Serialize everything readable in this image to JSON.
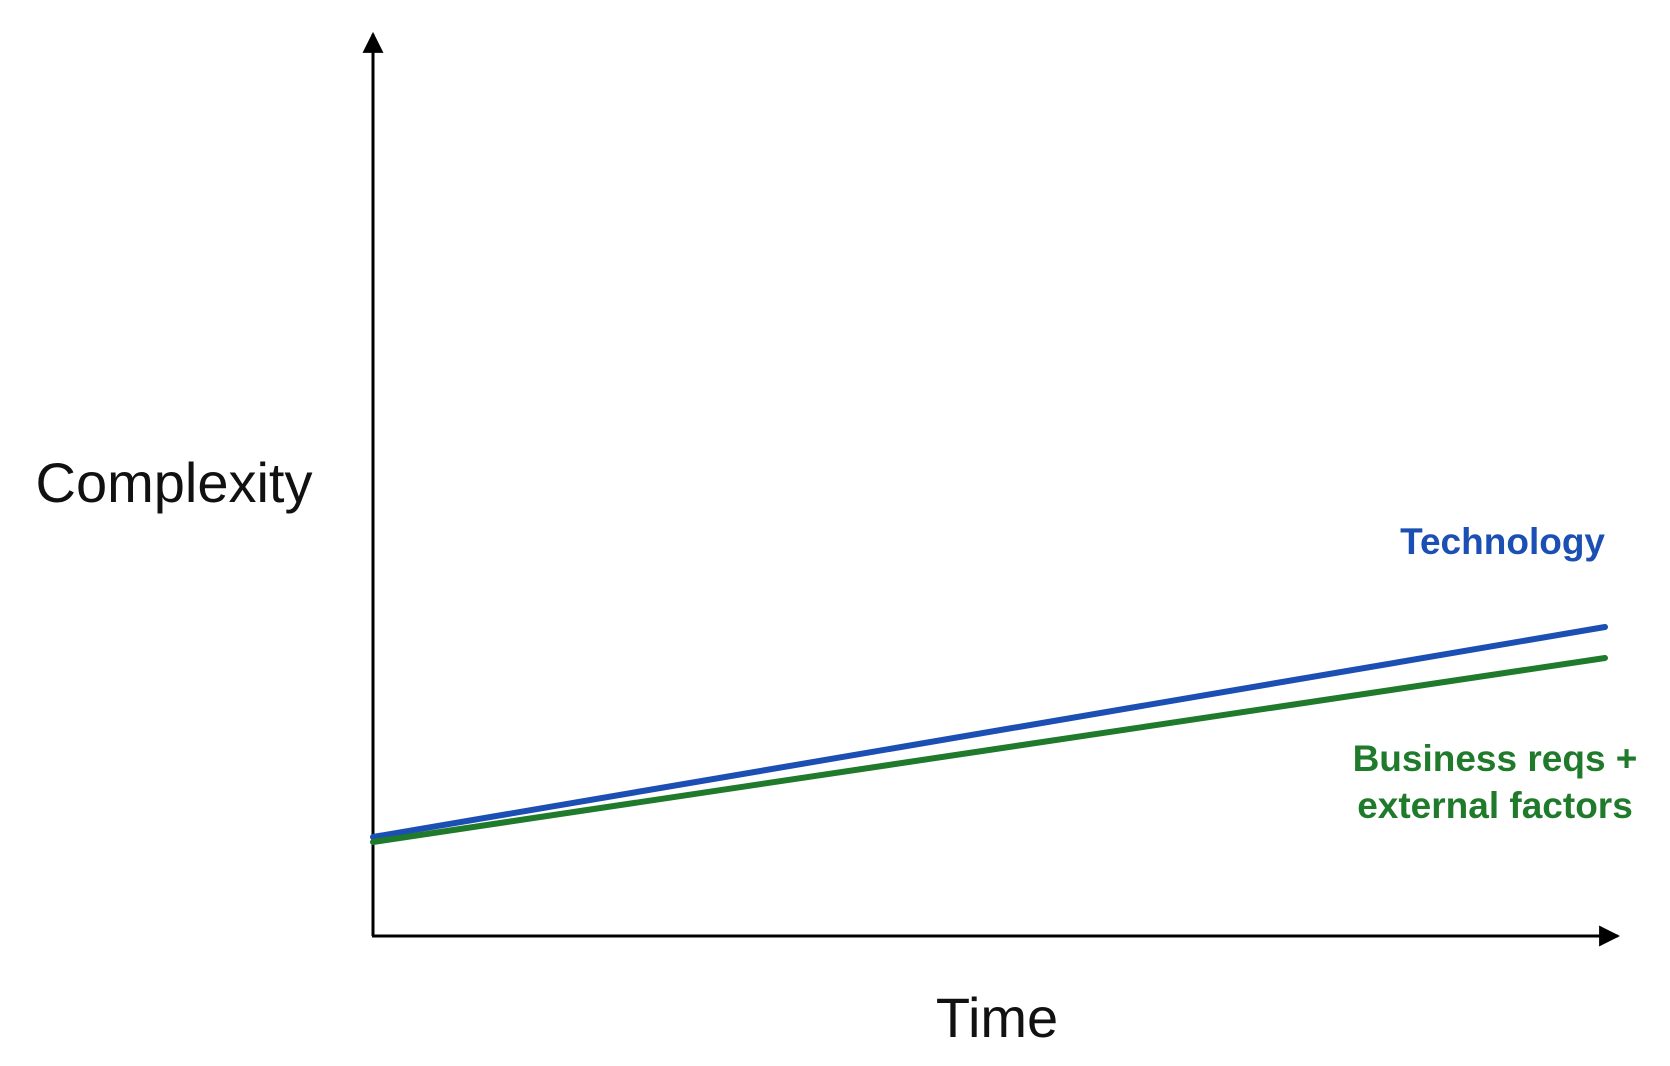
{
  "axes": {
    "y_label": "Complexity",
    "x_label": "Time"
  },
  "lines": [
    {
      "label": "Technology",
      "color": "#1b4fb3"
    },
    {
      "label_lines": [
        "Business reqs +",
        "external factors"
      ],
      "color": "#1f7a2b"
    }
  ]
}
